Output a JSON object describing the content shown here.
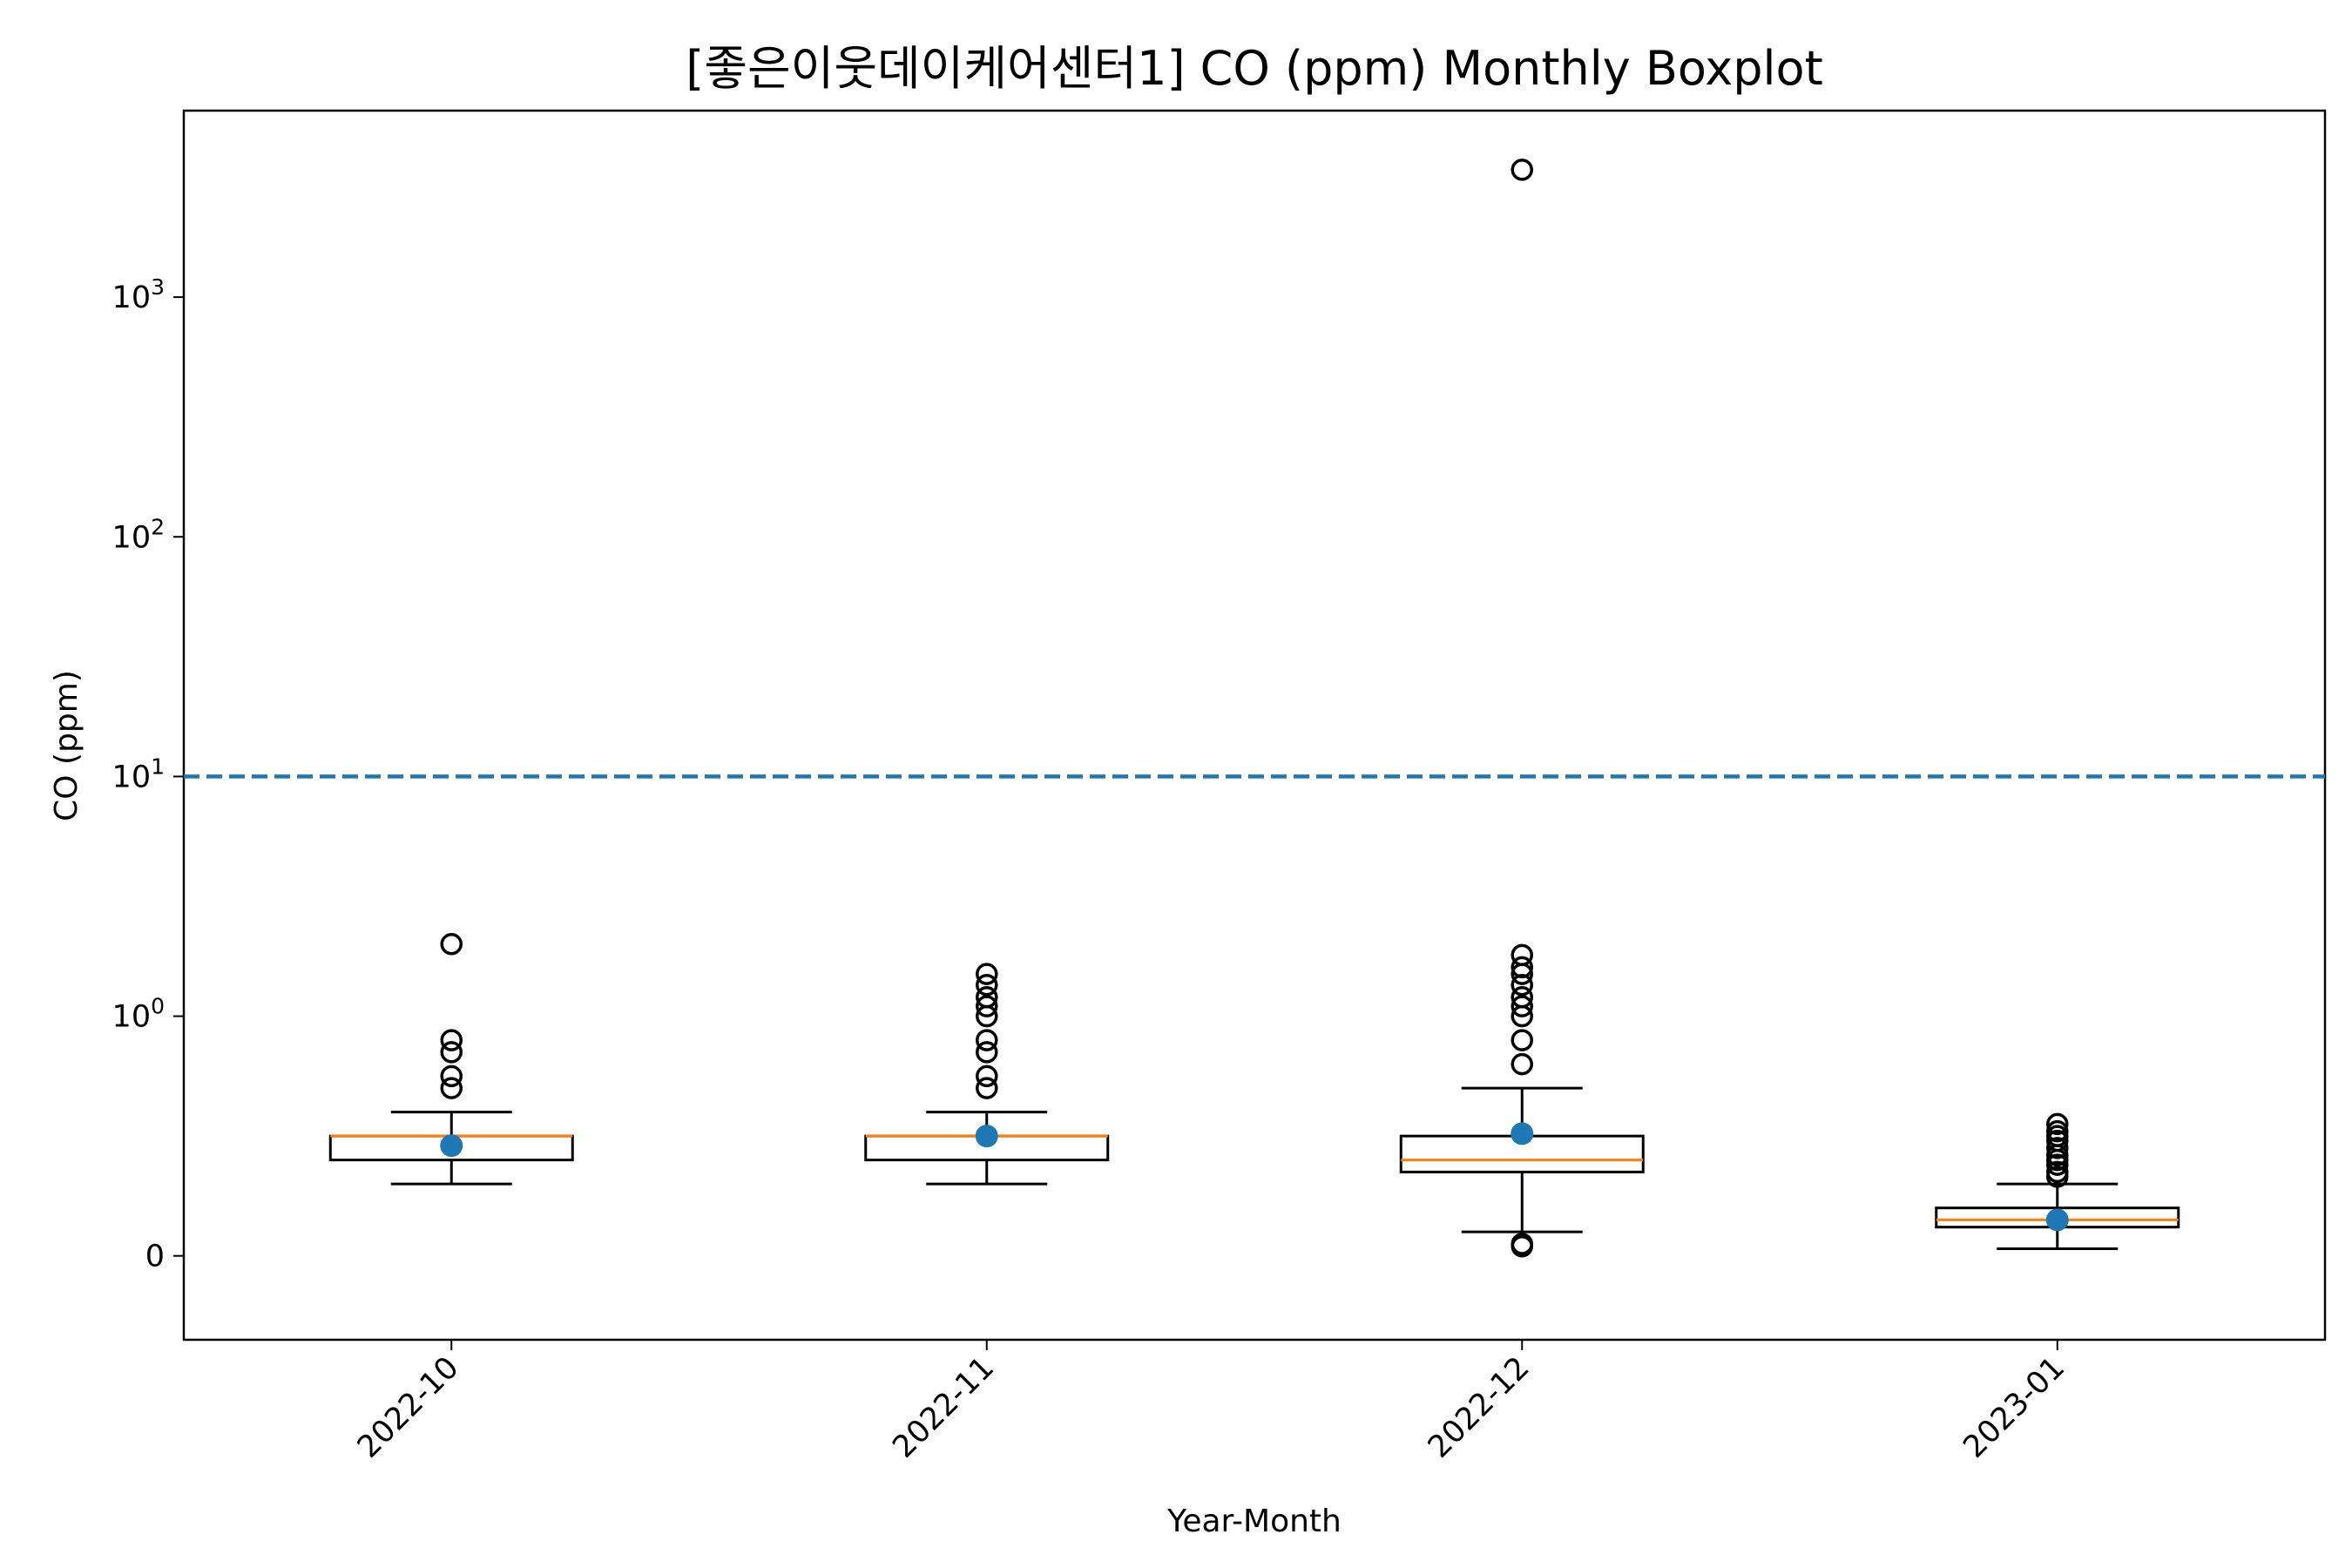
{
  "chart_data": {
    "type": "boxplot",
    "title": "[좋은이웃데이케어센터1] CO (ppm) Monthly Boxplot",
    "xlabel": "Year-Month",
    "ylabel": "CO (ppm)",
    "y_scale": "symlog",
    "y_ticks": [
      {
        "value": 0,
        "base": "0",
        "exp": ""
      },
      {
        "value": 1,
        "base": "10",
        "exp": "0"
      },
      {
        "value": 10,
        "base": "10",
        "exp": "1"
      },
      {
        "value": 100,
        "base": "10",
        "exp": "2"
      },
      {
        "value": 1000,
        "base": "10",
        "exp": "3"
      }
    ],
    "ylim": [
      -0.35,
      6000
    ],
    "categories": [
      "2022-10",
      "2022-11",
      "2022-12",
      "2023-01"
    ],
    "boxes": [
      {
        "whislo": 0.3,
        "q1": 0.4,
        "med": 0.5,
        "q3": 0.5,
        "whishi": 0.6,
        "mean": 0.46,
        "fliers": [
          2.0,
          0.9,
          0.85,
          0.75,
          0.7
        ]
      },
      {
        "whislo": 0.3,
        "q1": 0.4,
        "med": 0.5,
        "q3": 0.5,
        "whishi": 0.6,
        "mean": 0.5,
        "fliers": [
          1.5,
          1.35,
          1.2,
          1.1,
          1.0,
          0.9,
          0.85,
          0.75,
          0.7
        ]
      },
      {
        "whislo": 0.1,
        "q1": 0.35,
        "med": 0.4,
        "q3": 0.5,
        "whishi": 0.7,
        "mean": 0.51,
        "fliers": [
          3400,
          1.8,
          1.6,
          1.5,
          1.35,
          1.2,
          1.1,
          1.0,
          0.9,
          0.8,
          0.05,
          0.04
        ]
      },
      {
        "whislo": 0.03,
        "q1": 0.12,
        "med": 0.15,
        "q3": 0.2,
        "whishi": 0.3,
        "mean": 0.15,
        "fliers": [
          0.55,
          0.52,
          0.5,
          0.48,
          0.45,
          0.42,
          0.4,
          0.38,
          0.35,
          0.33
        ]
      }
    ],
    "reference_line": {
      "value": 10,
      "style": "dashed"
    },
    "colors": {
      "median": "#ff7f0e",
      "mean": "#1f77b4",
      "reference": "#1f77b4",
      "box": "#000000"
    }
  }
}
